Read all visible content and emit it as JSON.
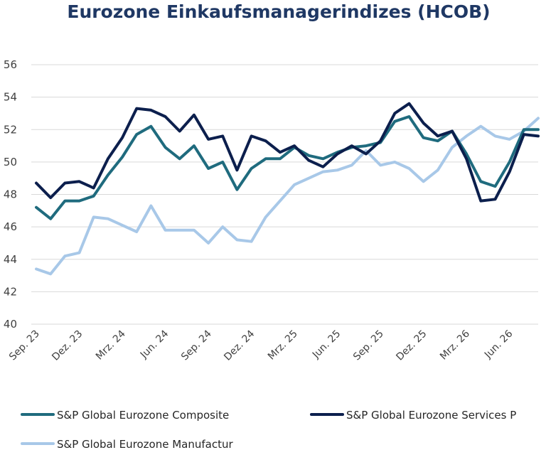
{
  "chart_data": {
    "type": "line",
    "title": "Eurozone Einkaufsmanagerindizes (HCOB)",
    "ylim": [
      40,
      56
    ],
    "y_ticks": [
      40,
      42,
      44,
      46,
      48,
      50,
      52,
      54,
      56
    ],
    "grid": true,
    "legend_position": "bottom",
    "x_labels": [
      "Sep. 23",
      "Dez. 23",
      "Mrz. 24",
      "Jun. 24",
      "Sep. 24",
      "Dez. 24",
      "Mrz. 25",
      "Jun. 25",
      "Sep. 25",
      "Dez. 25",
      "Mrz. 26",
      "Jun. 26"
    ],
    "x_label_every": 3,
    "series": [
      {
        "name": "S&P Global Eurozone Composite",
        "color": "#1f6b7e",
        "values": [
          47.2,
          46.5,
          47.6,
          47.6,
          47.9,
          49.2,
          50.3,
          51.7,
          52.2,
          50.9,
          50.2,
          51.0,
          49.6,
          50.0,
          48.3,
          49.6,
          50.2,
          50.2,
          50.9,
          50.4,
          50.2,
          50.6,
          50.9,
          51.0,
          51.2,
          52.5,
          52.8,
          51.5,
          51.3,
          51.9,
          50.5,
          48.8,
          48.5,
          50.0,
          52.0,
          52.0
        ]
      },
      {
        "name": "S&P Global Eurozone Services P",
        "color": "#0c1f4d",
        "values": [
          48.7,
          47.8,
          48.7,
          48.8,
          48.4,
          50.2,
          51.5,
          53.3,
          53.2,
          52.8,
          51.9,
          52.9,
          51.4,
          51.6,
          49.5,
          51.6,
          51.3,
          50.6,
          51.0,
          50.1,
          49.7,
          50.5,
          51.0,
          50.5,
          51.3,
          53.0,
          53.6,
          52.4,
          51.6,
          51.9,
          50.2,
          47.6,
          47.7,
          49.4,
          51.7,
          51.6
        ]
      },
      {
        "name": "S&P Global Eurozone Manufactur",
        "color": "#a8c8e8",
        "values": [
          43.4,
          43.1,
          44.2,
          44.4,
          46.6,
          46.5,
          46.1,
          45.7,
          47.3,
          45.8,
          45.8,
          45.8,
          45.0,
          46.0,
          45.2,
          45.1,
          46.6,
          47.6,
          48.6,
          49.0,
          49.4,
          49.5,
          49.8,
          50.7,
          49.8,
          50.0,
          49.6,
          48.8,
          49.5,
          50.9,
          51.6,
          52.2,
          51.6,
          51.4,
          51.9,
          52.7
        ]
      }
    ]
  }
}
